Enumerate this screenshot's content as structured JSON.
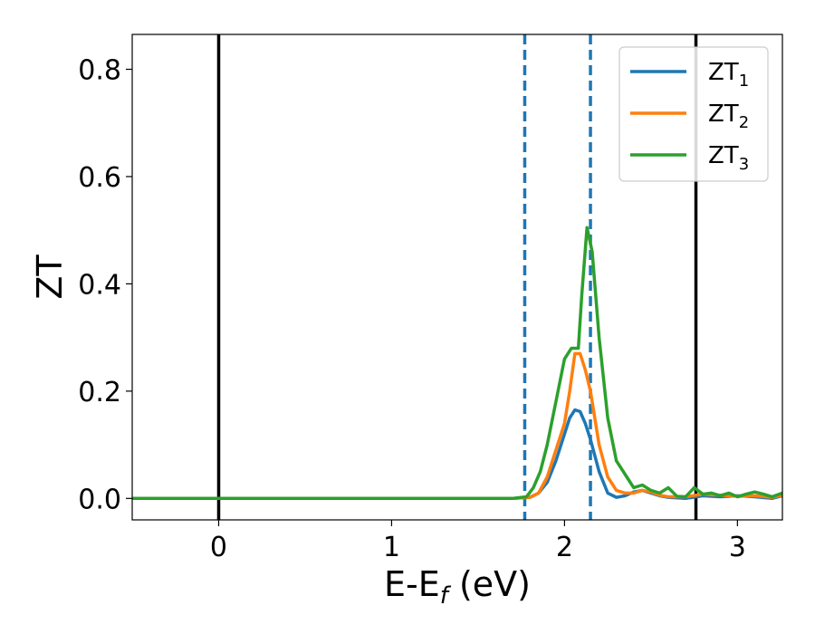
{
  "chart_data": {
    "type": "line",
    "xlabel": "E-E",
    "xlabel_sub": "f",
    "xlabel_unit": " (eV)",
    "ylabel": "ZT",
    "xlim": [
      -0.5,
      3.26
    ],
    "ylim": [
      -0.04,
      0.865
    ],
    "xticks": [
      0,
      1,
      2,
      3
    ],
    "xtick_labels": [
      "0",
      "1",
      "2",
      "3"
    ],
    "yticks": [
      0.0,
      0.2,
      0.4,
      0.6,
      0.8
    ],
    "ytick_labels": [
      "0.0",
      "0.2",
      "0.4",
      "0.6",
      "0.8"
    ],
    "grid": false,
    "legend_position": "top-right",
    "vlines": [
      {
        "x": 0.0,
        "color": "#000000",
        "style": "solid"
      },
      {
        "x": 2.76,
        "color": "#000000",
        "style": "solid"
      },
      {
        "x": 1.77,
        "color": "#1f77b4",
        "style": "dashed"
      },
      {
        "x": 2.15,
        "color": "#1f77b4",
        "style": "dashed"
      }
    ],
    "series": [
      {
        "name": "ZT",
        "sub": "1",
        "color": "#1f77b4",
        "x": [
          -0.5,
          1.7,
          1.8,
          1.85,
          1.9,
          1.95,
          2.0,
          2.03,
          2.06,
          2.09,
          2.12,
          2.15,
          2.2,
          2.25,
          2.3,
          2.35,
          2.4,
          2.45,
          2.5,
          2.55,
          2.6,
          2.7,
          2.8,
          2.9,
          3.0,
          3.1,
          3.2,
          3.26
        ],
        "y": [
          0.0,
          0.0,
          0.002,
          0.01,
          0.03,
          0.07,
          0.12,
          0.15,
          0.165,
          0.162,
          0.14,
          0.11,
          0.05,
          0.01,
          0.002,
          0.005,
          0.012,
          0.015,
          0.01,
          0.005,
          0.002,
          0.0,
          0.005,
          0.003,
          0.005,
          0.003,
          0.0,
          0.005
        ]
      },
      {
        "name": "ZT",
        "sub": "2",
        "color": "#ff7f0e",
        "x": [
          -0.5,
          1.7,
          1.8,
          1.85,
          1.9,
          1.95,
          2.0,
          2.03,
          2.06,
          2.09,
          2.12,
          2.15,
          2.2,
          2.25,
          2.3,
          2.35,
          2.4,
          2.45,
          2.5,
          2.55,
          2.6,
          2.7,
          2.8,
          2.9,
          3.0,
          3.1,
          3.2,
          3.26
        ],
        "y": [
          0.0,
          0.0,
          0.002,
          0.01,
          0.04,
          0.09,
          0.14,
          0.2,
          0.27,
          0.27,
          0.24,
          0.2,
          0.1,
          0.04,
          0.015,
          0.01,
          0.01,
          0.015,
          0.012,
          0.006,
          0.003,
          0.003,
          0.008,
          0.006,
          0.004,
          0.005,
          0.002,
          0.006
        ]
      },
      {
        "name": "ZT",
        "sub": "3",
        "color": "#2ca02c",
        "x": [
          -0.5,
          1.7,
          1.78,
          1.82,
          1.86,
          1.9,
          1.95,
          2.0,
          2.04,
          2.08,
          2.1,
          2.13,
          2.16,
          2.2,
          2.25,
          2.3,
          2.33,
          2.36,
          2.4,
          2.45,
          2.5,
          2.55,
          2.6,
          2.65,
          2.7,
          2.75,
          2.8,
          2.85,
          2.9,
          2.95,
          3.0,
          3.05,
          3.1,
          3.15,
          3.2,
          3.26
        ],
        "y": [
          0.0,
          0.0,
          0.003,
          0.02,
          0.05,
          0.1,
          0.18,
          0.26,
          0.28,
          0.28,
          0.38,
          0.505,
          0.46,
          0.3,
          0.15,
          0.07,
          0.055,
          0.04,
          0.02,
          0.025,
          0.015,
          0.01,
          0.02,
          0.004,
          0.003,
          0.02,
          0.008,
          0.01,
          0.005,
          0.01,
          0.003,
          0.008,
          0.012,
          0.008,
          0.003,
          0.01
        ]
      }
    ]
  }
}
